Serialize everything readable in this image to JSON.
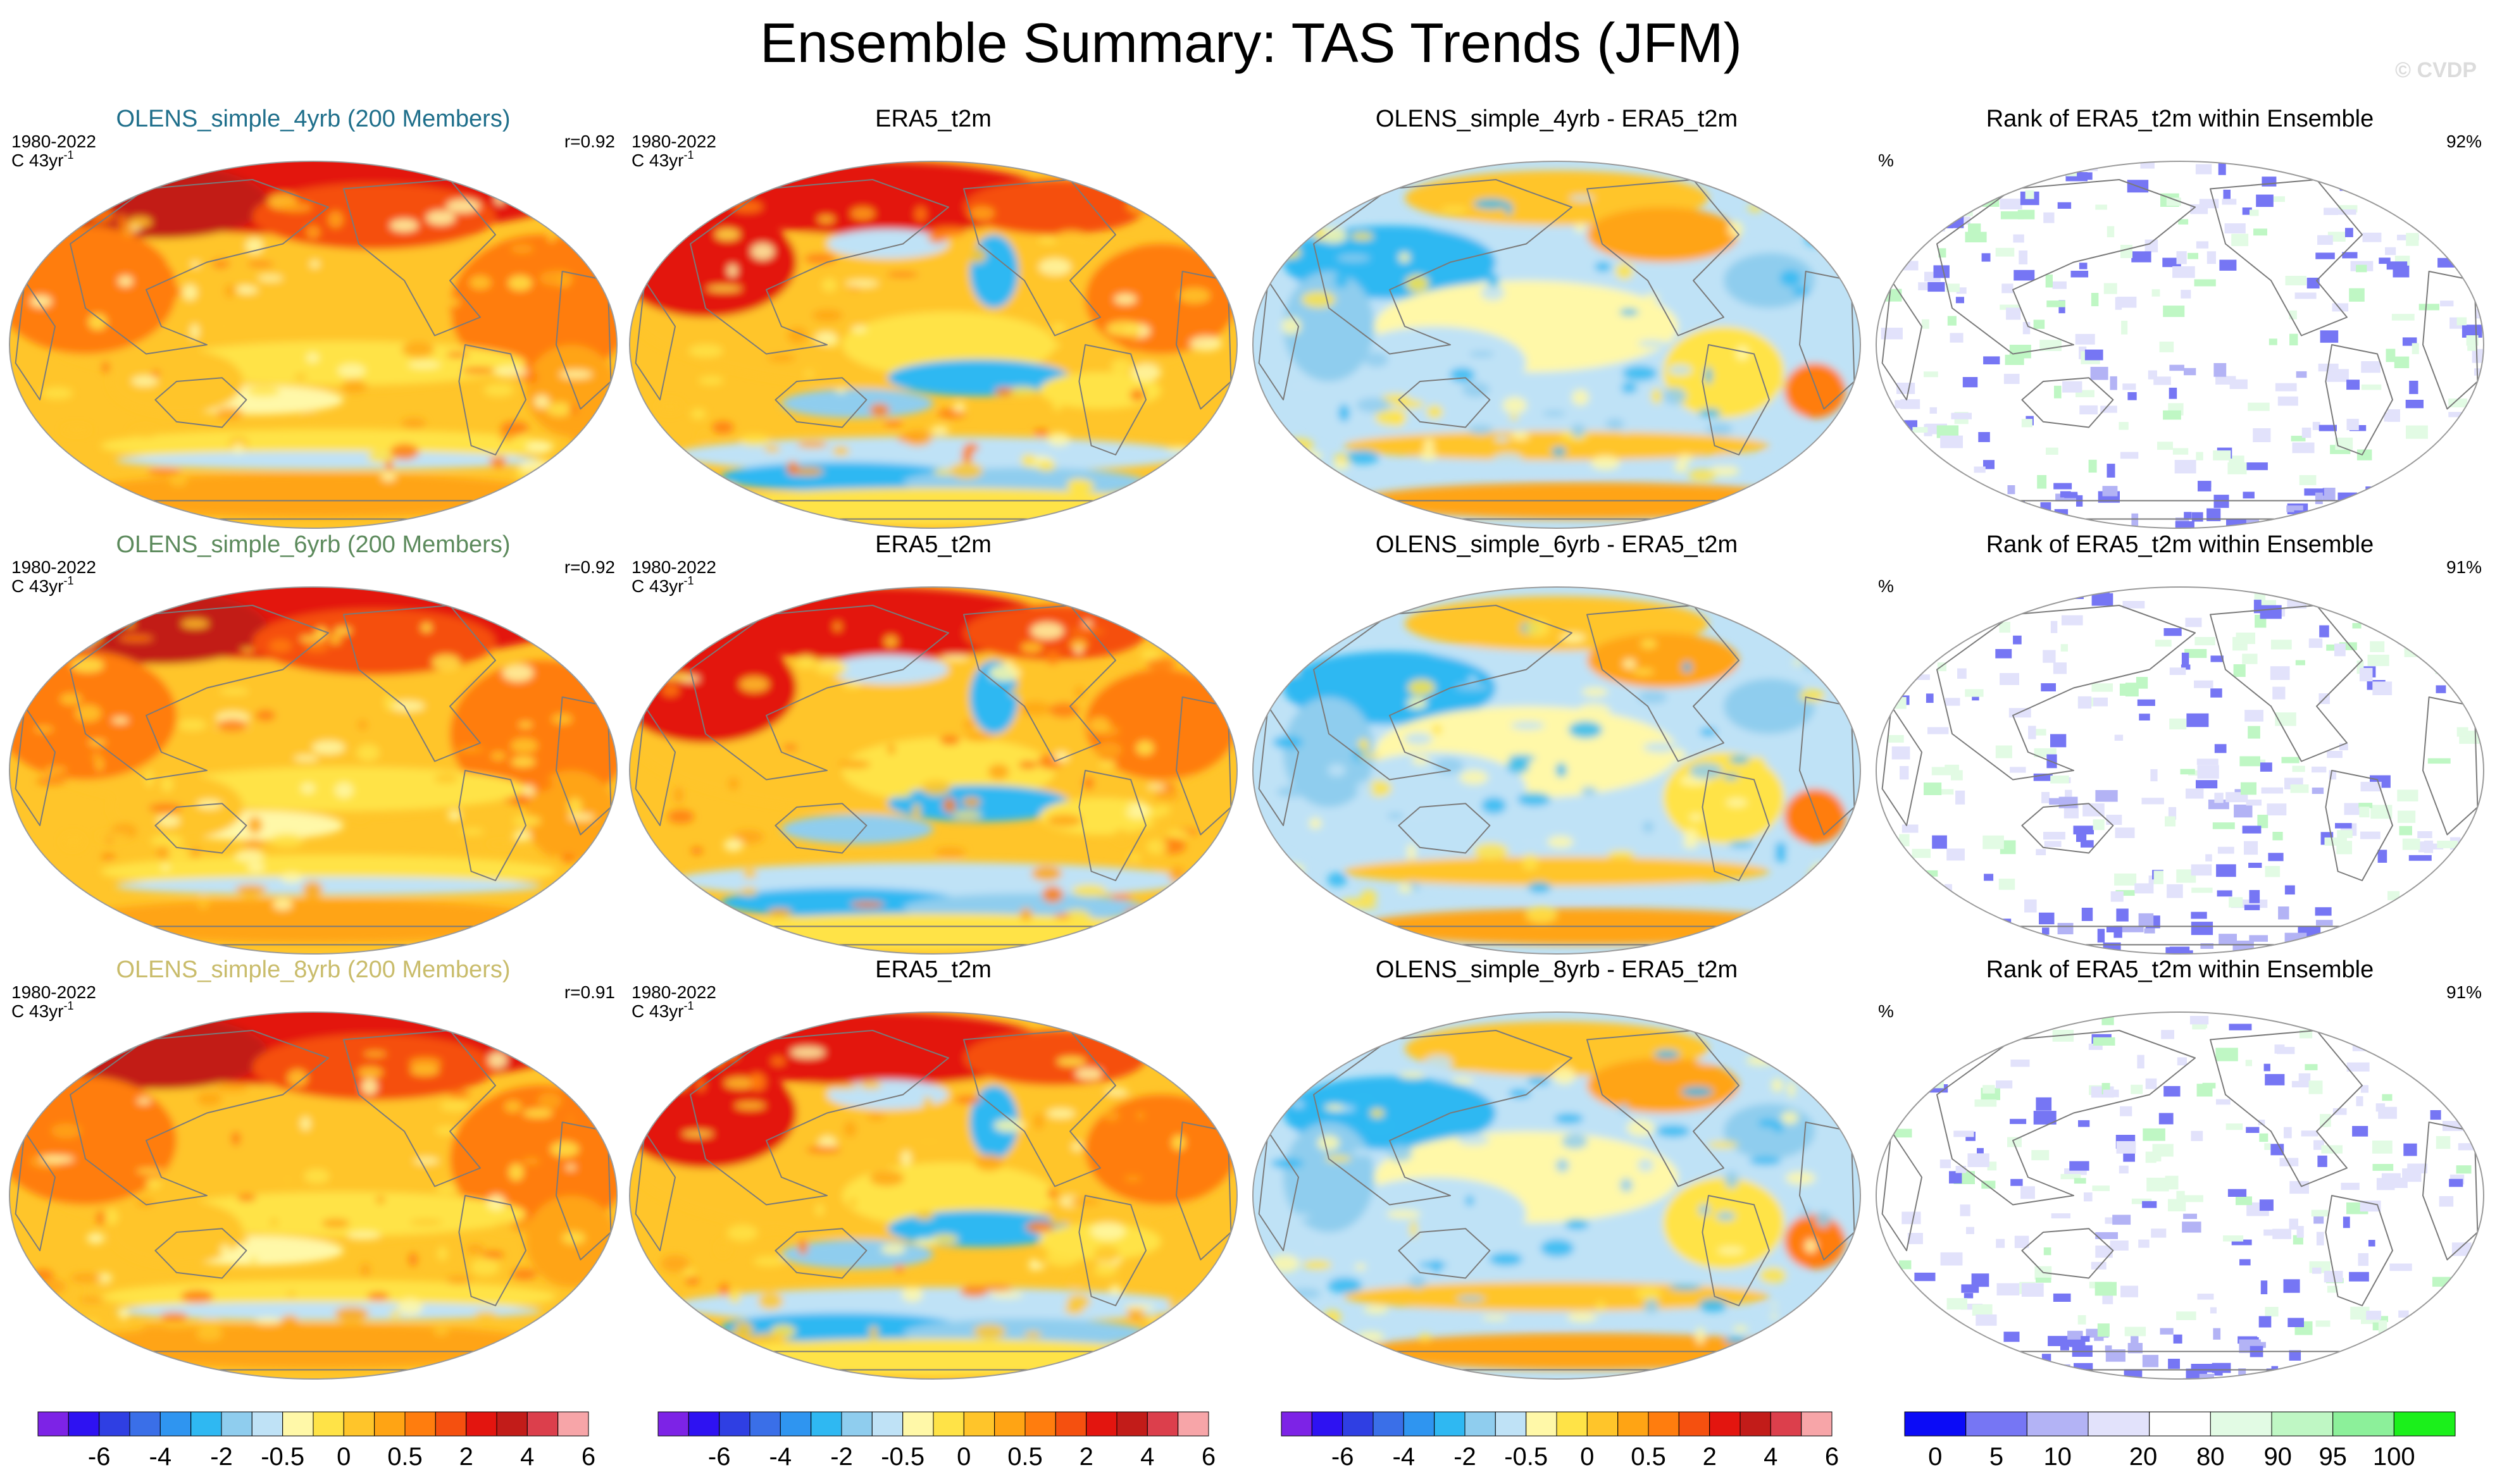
{
  "figure": {
    "title": "Ensemble Summary: TAS Trends (JFM)",
    "watermark": "© CVDP"
  },
  "colors": {
    "trend_scale": [
      "#7d23e6",
      "#2e12f2",
      "#2f3fe3",
      "#3a6fe8",
      "#2f95f0",
      "#2fb8f2",
      "#8fcdee",
      "#bfe2f6",
      "#fff8a8",
      "#ffe347",
      "#ffc52a",
      "#ffa414",
      "#ff7d0e",
      "#f5500f",
      "#e3150f",
      "#c21c19",
      "#dc3f4c",
      "#f7a5a8"
    ],
    "rank_scale": [
      "#0b0bf7",
      "#7676f4",
      "#b3b3f5",
      "#e2e2fb",
      "#ffffff",
      "#e2fbe4",
      "#bff7c4",
      "#8cf09a",
      "#1bf01b"
    ],
    "ocean_base": "#ffc52a",
    "land_outline": "#7a7a7a"
  },
  "panels": [
    {
      "row": 0,
      "col": 0,
      "title": "OLENS_simple_4yrb (200 Members)",
      "title_color": "#1f6f8b",
      "period": "1980-2022",
      "units": "C 43yr",
      "units_sup": "-1",
      "stat": "r=0.92",
      "kind": "ensemble"
    },
    {
      "row": 0,
      "col": 1,
      "title": "ERA5_t2m",
      "title_color": "#000000",
      "period": "1980-2022",
      "units": "C 43yr",
      "units_sup": "-1",
      "stat": "",
      "kind": "obs"
    },
    {
      "row": 0,
      "col": 2,
      "title": "OLENS_simple_4yrb - ERA5_t2m",
      "title_color": "#000000",
      "period": "",
      "units": "",
      "units_sup": "",
      "stat": "",
      "kind": "diff"
    },
    {
      "row": 0,
      "col": 3,
      "title": "Rank of ERA5_t2m within Ensemble",
      "title_color": "#000000",
      "period": "",
      "units": "%",
      "units_sup": "",
      "stat": "92%",
      "kind": "rank"
    },
    {
      "row": 1,
      "col": 0,
      "title": "OLENS_simple_6yrb (200 Members)",
      "title_color": "#5c8a5c",
      "period": "1980-2022",
      "units": "C 43yr",
      "units_sup": "-1",
      "stat": "r=0.92",
      "kind": "ensemble"
    },
    {
      "row": 1,
      "col": 1,
      "title": "ERA5_t2m",
      "title_color": "#000000",
      "period": "1980-2022",
      "units": "C 43yr",
      "units_sup": "-1",
      "stat": "",
      "kind": "obs"
    },
    {
      "row": 1,
      "col": 2,
      "title": "OLENS_simple_6yrb - ERA5_t2m",
      "title_color": "#000000",
      "period": "",
      "units": "",
      "units_sup": "",
      "stat": "",
      "kind": "diff"
    },
    {
      "row": 1,
      "col": 3,
      "title": "Rank of ERA5_t2m within Ensemble",
      "title_color": "#000000",
      "period": "",
      "units": "%",
      "units_sup": "",
      "stat": "91%",
      "kind": "rank"
    },
    {
      "row": 2,
      "col": 0,
      "title": "OLENS_simple_8yrb (200 Members)",
      "title_color": "#c9bc6b",
      "period": "1980-2022",
      "units": "C 43yr",
      "units_sup": "-1",
      "stat": "r=0.91",
      "kind": "ensemble"
    },
    {
      "row": 2,
      "col": 1,
      "title": "ERA5_t2m",
      "title_color": "#000000",
      "period": "1980-2022",
      "units": "C 43yr",
      "units_sup": "-1",
      "stat": "",
      "kind": "obs"
    },
    {
      "row": 2,
      "col": 2,
      "title": "OLENS_simple_8yrb - ERA5_t2m",
      "title_color": "#000000",
      "period": "",
      "units": "",
      "units_sup": "",
      "stat": "",
      "kind": "diff"
    },
    {
      "row": 2,
      "col": 3,
      "title": "Rank of ERA5_t2m within Ensemble",
      "title_color": "#000000",
      "period": "",
      "units": "%",
      "units_sup": "",
      "stat": "91%",
      "kind": "rank"
    }
  ],
  "chart_data": {
    "type": "heatmap",
    "projection": "global map",
    "title": "Ensemble Summary: TAS Trends (JFM)",
    "variable": "TAS trend",
    "season": "JFM",
    "period": "1980-2022",
    "units": "C 43yr-1",
    "pattern_correlations": [
      {
        "ensemble": "OLENS_simple_4yrb",
        "r": 0.92
      },
      {
        "ensemble": "OLENS_simple_6yrb",
        "r": 0.92
      },
      {
        "ensemble": "OLENS_simple_8yrb",
        "r": 0.91
      }
    ],
    "rank_area_percent": [
      {
        "ensemble": "OLENS_simple_4yrb",
        "value": 92
      },
      {
        "ensemble": "OLENS_simple_6yrb",
        "value": 91
      },
      {
        "ensemble": "OLENS_simple_8yrb",
        "value": 91
      }
    ],
    "trend_colorbar": {
      "labels": [
        "-6",
        "-4",
        "-2",
        "-0.5",
        "0",
        "0.5",
        "2",
        "4",
        "6"
      ]
    },
    "rank_colorbar": {
      "labels": [
        "0",
        "5",
        "10",
        "20",
        "80",
        "90",
        "95",
        "100"
      ]
    },
    "colorbars": [
      {
        "col": 0,
        "scale": "trend"
      },
      {
        "col": 1,
        "scale": "trend"
      },
      {
        "col": 2,
        "scale": "trend"
      },
      {
        "col": 3,
        "scale": "rank"
      }
    ]
  }
}
